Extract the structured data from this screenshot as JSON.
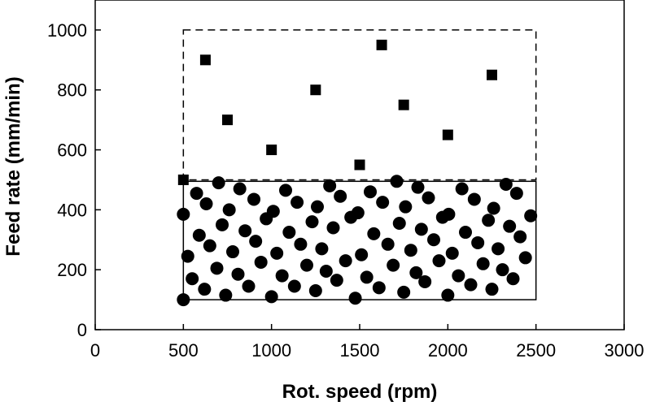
{
  "chart_data": {
    "type": "scatter",
    "title": "",
    "xlabel": "Rot. speed (rpm)",
    "ylabel": "Feed rate (mm/min)",
    "xlim": [
      0,
      3000
    ],
    "ylim": [
      0,
      1100
    ],
    "x_ticks": [
      0,
      500,
      1000,
      1500,
      2000,
      2500,
      3000
    ],
    "y_ticks": [
      0,
      200,
      400,
      600,
      800,
      1000
    ],
    "grid": false,
    "legend": "none",
    "colors": {
      "markers": "#000000",
      "frame": "#000000",
      "background": "#ffffff"
    },
    "regions": [
      {
        "style": "dashed",
        "x": [
          500,
          2500
        ],
        "y": [
          500,
          1000
        ]
      },
      {
        "style": "solid",
        "x": [
          500,
          2500
        ],
        "y": [
          100,
          495
        ]
      }
    ],
    "series": [
      {
        "marker": "square",
        "points": [
          [
            500,
            500
          ],
          [
            625,
            900
          ],
          [
            750,
            700
          ],
          [
            1000,
            600
          ],
          [
            1250,
            800
          ],
          [
            1500,
            550
          ],
          [
            1625,
            950
          ],
          [
            1750,
            750
          ],
          [
            2000,
            650
          ],
          [
            2250,
            850
          ]
        ]
      },
      {
        "marker": "circle",
        "points": [
          [
            500,
            100
          ],
          [
            500,
            385
          ],
          [
            525,
            245
          ],
          [
            550,
            170
          ],
          [
            575,
            455
          ],
          [
            590,
            315
          ],
          [
            620,
            135
          ],
          [
            630,
            420
          ],
          [
            650,
            280
          ],
          [
            690,
            205
          ],
          [
            700,
            490
          ],
          [
            720,
            350
          ],
          [
            740,
            115
          ],
          [
            760,
            400
          ],
          [
            780,
            260
          ],
          [
            810,
            185
          ],
          [
            820,
            470
          ],
          [
            850,
            330
          ],
          [
            870,
            145
          ],
          [
            900,
            435
          ],
          [
            910,
            295
          ],
          [
            940,
            225
          ],
          [
            970,
            370
          ],
          [
            1000,
            110
          ],
          [
            1010,
            395
          ],
          [
            1030,
            255
          ],
          [
            1060,
            180
          ],
          [
            1080,
            465
          ],
          [
            1100,
            325
          ],
          [
            1130,
            145
          ],
          [
            1145,
            425
          ],
          [
            1165,
            285
          ],
          [
            1200,
            215
          ],
          [
            1230,
            360
          ],
          [
            1250,
            130
          ],
          [
            1260,
            410
          ],
          [
            1285,
            270
          ],
          [
            1310,
            195
          ],
          [
            1330,
            480
          ],
          [
            1350,
            340
          ],
          [
            1370,
            165
          ],
          [
            1390,
            445
          ],
          [
            1420,
            230
          ],
          [
            1450,
            375
          ],
          [
            1475,
            105
          ],
          [
            1490,
            390
          ],
          [
            1510,
            250
          ],
          [
            1540,
            175
          ],
          [
            1560,
            460
          ],
          [
            1580,
            320
          ],
          [
            1610,
            140
          ],
          [
            1630,
            425
          ],
          [
            1660,
            285
          ],
          [
            1690,
            215
          ],
          [
            1710,
            495
          ],
          [
            1725,
            355
          ],
          [
            1750,
            125
          ],
          [
            1760,
            410
          ],
          [
            1790,
            265
          ],
          [
            1820,
            190
          ],
          [
            1830,
            475
          ],
          [
            1850,
            335
          ],
          [
            1870,
            160
          ],
          [
            1890,
            440
          ],
          [
            1920,
            300
          ],
          [
            1950,
            230
          ],
          [
            1970,
            375
          ],
          [
            2000,
            115
          ],
          [
            2005,
            385
          ],
          [
            2025,
            255
          ],
          [
            2060,
            180
          ],
          [
            2080,
            470
          ],
          [
            2100,
            325
          ],
          [
            2130,
            150
          ],
          [
            2150,
            435
          ],
          [
            2170,
            290
          ],
          [
            2200,
            220
          ],
          [
            2230,
            365
          ],
          [
            2250,
            135
          ],
          [
            2260,
            405
          ],
          [
            2285,
            270
          ],
          [
            2310,
            200
          ],
          [
            2330,
            485
          ],
          [
            2350,
            345
          ],
          [
            2370,
            170
          ],
          [
            2390,
            455
          ],
          [
            2410,
            310
          ],
          [
            2440,
            240
          ],
          [
            2470,
            380
          ]
        ]
      }
    ]
  }
}
